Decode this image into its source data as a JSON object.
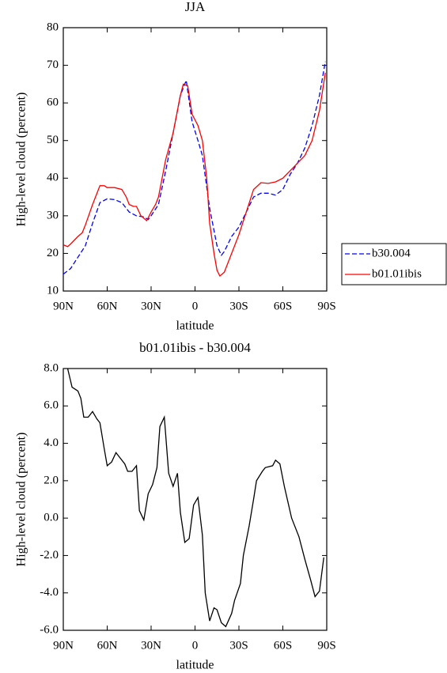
{
  "chart_data": [
    {
      "type": "line",
      "title": "JJA",
      "xlabel": "latitude",
      "ylabel": "High-level cloud (percent)",
      "xlim": [
        90,
        -90
      ],
      "ylim": [
        10,
        80
      ],
      "xticks": [
        {
          "value": 90,
          "label": "90N"
        },
        {
          "value": 60,
          "label": "60N"
        },
        {
          "value": 30,
          "label": "30N"
        },
        0,
        {
          "value": -30,
          "label": "30S"
        },
        {
          "value": -60,
          "label": "60S"
        },
        {
          "value": -90,
          "label": "90S"
        }
      ],
      "yticks": [
        10,
        20,
        30,
        40,
        50,
        60,
        70,
        80
      ],
      "legend": "right",
      "series": [
        {
          "name": "b30.004",
          "color": "#0000ff",
          "dash": true,
          "x": [
            90,
            85,
            80,
            75,
            70,
            65,
            60,
            55,
            50,
            45,
            40,
            35,
            32,
            30,
            25,
            20,
            15,
            10,
            6,
            2,
            -2,
            -5,
            -10,
            -15,
            -18,
            -20,
            -25,
            -30,
            -35,
            -40,
            -45,
            -50,
            -55,
            -60,
            -65,
            -70,
            -75,
            -80,
            -85,
            -89
          ],
          "values": [
            14.5,
            16,
            19,
            22,
            28,
            33.5,
            34.5,
            34.3,
            33.5,
            31,
            30,
            29.7,
            29,
            30,
            33,
            42,
            52,
            62,
            66,
            55,
            50,
            46,
            32,
            22,
            19.5,
            20.5,
            24.5,
            27,
            31,
            35,
            36,
            36,
            35.5,
            37,
            41,
            44,
            48,
            54,
            62,
            71
          ]
        },
        {
          "name": "b01.01ibis",
          "color": "#ff0000",
          "dash": false,
          "x": [
            90,
            87,
            85,
            80,
            77,
            75,
            70,
            65,
            62,
            60,
            55,
            50,
            47,
            45,
            42,
            40,
            37,
            33,
            30,
            27,
            25,
            20,
            15,
            10,
            8,
            5,
            2,
            -2,
            -5,
            -8,
            -10,
            -13,
            -15,
            -17,
            -20,
            -25,
            -30,
            -35,
            -40,
            -45,
            -50,
            -55,
            -60,
            -65,
            -70,
            -75,
            -80,
            -85,
            -89
          ],
          "values": [
            22.3,
            21.8,
            22.5,
            24.5,
            25.5,
            27.5,
            33,
            38,
            38,
            37.5,
            37.5,
            37,
            35,
            33,
            32.5,
            32.5,
            30,
            28.7,
            31,
            33,
            35,
            45,
            52,
            62,
            65,
            64.5,
            57,
            54,
            50,
            40,
            28,
            20,
            15.5,
            14,
            15,
            20,
            25,
            31,
            37,
            38.8,
            38.6,
            39,
            40,
            42,
            44,
            46,
            50,
            58,
            68
          ]
        }
      ]
    },
    {
      "type": "line",
      "title": "b01.01ibis - b30.004",
      "xlabel": "latitude",
      "ylabel": "High-level cloud (percent)",
      "xlim": [
        90,
        -90
      ],
      "ylim": [
        -6,
        8
      ],
      "xticks": [
        {
          "value": 90,
          "label": "90N"
        },
        {
          "value": 60,
          "label": "60N"
        },
        {
          "value": 30,
          "label": "30N"
        },
        0,
        {
          "value": -30,
          "label": "30S"
        },
        {
          "value": -60,
          "label": "60S"
        },
        {
          "value": -90,
          "label": "90S"
        }
      ],
      "yticks": [
        {
          "value": -6,
          "label": "-6.0"
        },
        {
          "value": -4,
          "label": "-4.0"
        },
        {
          "value": -2,
          "label": "-2.0"
        },
        {
          "value": 0,
          "label": "0.0"
        },
        {
          "value": 2,
          "label": "2.0"
        },
        {
          "value": 4,
          "label": "4.0"
        },
        {
          "value": 6,
          "label": "6.0"
        },
        {
          "value": 8,
          "label": "8.0"
        }
      ],
      "series": [
        {
          "color": "#000000",
          "dash": false,
          "x": [
            87,
            84,
            80,
            78,
            76,
            73,
            70,
            67,
            65,
            62,
            60,
            57,
            54,
            52,
            48,
            46,
            43,
            40,
            38,
            35,
            32,
            29,
            26,
            24,
            21,
            18,
            15,
            12,
            10,
            7,
            4,
            1,
            -2,
            -5,
            -7,
            -10,
            -13,
            -15,
            -18,
            -21,
            -25,
            -27,
            -31,
            -33,
            -37,
            -40,
            -42,
            -46,
            -48,
            -53,
            -55,
            -58,
            -61,
            -66,
            -71,
            -75,
            -79,
            -82,
            -85,
            -88
          ],
          "values": [
            8.0,
            7.0,
            6.8,
            6.4,
            5.4,
            5.4,
            5.7,
            5.3,
            5.1,
            3.7,
            2.8,
            3.0,
            3.5,
            3.3,
            2.9,
            2.5,
            2.5,
            2.8,
            0.4,
            -0.1,
            1.3,
            1.8,
            2.7,
            4.9,
            5.4,
            2.4,
            1.7,
            2.4,
            0.3,
            -1.3,
            -1.1,
            0.7,
            1.1,
            -0.9,
            -4.0,
            -5.5,
            -4.8,
            -4.9,
            -5.6,
            -5.8,
            -5.1,
            -4.4,
            -3.5,
            -2.0,
            -0.4,
            1.0,
            2.0,
            2.5,
            2.7,
            2.8,
            3.1,
            2.9,
            1.7,
            0.0,
            -1.0,
            -2.2,
            -3.3,
            -4.2,
            -3.9,
            -2.1
          ]
        }
      ]
    }
  ]
}
